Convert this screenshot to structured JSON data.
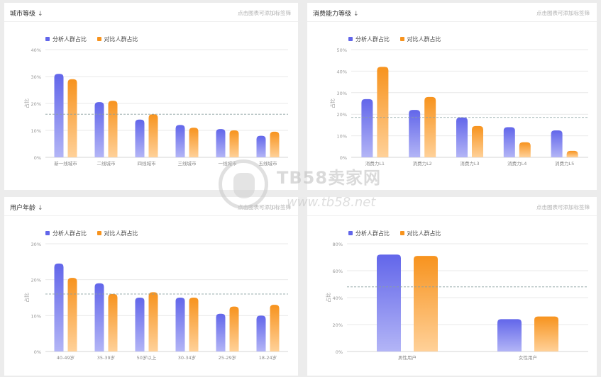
{
  "colors": {
    "analysis": "#6266ea",
    "compare": "#f7931e",
    "grid": "#e9e9e9",
    "avg_line": "#8aa0a0"
  },
  "legend": {
    "analysis_label": "分析人群占比",
    "compare_label": "对比人群占比"
  },
  "hint": "点击图表可添加标签筛",
  "watermark": {
    "line1": "TB58卖家网",
    "line2": "www.tb58.net"
  },
  "panels": [
    {
      "title": "城市等级",
      "sort_icon": "↓"
    },
    {
      "title": "消费能力等级",
      "sort_icon": "↓"
    },
    {
      "title": "用户年龄",
      "sort_icon": "↓"
    },
    {
      "title": "",
      "sort_icon": ""
    }
  ],
  "chart_data": [
    {
      "type": "bar",
      "ylabel": "占比",
      "yticks": [
        "0%",
        "10%",
        "20%",
        "30%",
        "40%"
      ],
      "ylim": [
        0,
        40
      ],
      "categories": [
        "新一线城市",
        "二线城市",
        "四线城市",
        "三线城市",
        "一线城市",
        "五线城市"
      ],
      "series": [
        {
          "name": "分析人群占比",
          "values": [
            31,
            20.5,
            14,
            12,
            10.5,
            8
          ]
        },
        {
          "name": "对比人群占比",
          "values": [
            29,
            21,
            16,
            11,
            10,
            9.5
          ]
        }
      ],
      "avg_line": 16,
      "grid": true,
      "legend_position": "top-left"
    },
    {
      "type": "bar",
      "ylabel": "占比",
      "yticks": [
        "0%",
        "10%",
        "20%",
        "30%",
        "40%",
        "50%"
      ],
      "ylim": [
        0,
        50
      ],
      "categories": [
        "消费力L1",
        "消费力L2",
        "消费力L3",
        "消费力L4",
        "消费力L5"
      ],
      "series": [
        {
          "name": "分析人群占比",
          "values": [
            27,
            22,
            18.5,
            14,
            12.5
          ]
        },
        {
          "name": "对比人群占比",
          "values": [
            42,
            28,
            14.5,
            7,
            3
          ]
        }
      ],
      "avg_line": 18.5,
      "grid": true,
      "legend_position": "top-left"
    },
    {
      "type": "bar",
      "ylabel": "占比",
      "yticks": [
        "0%",
        "10%",
        "20%",
        "30%"
      ],
      "ylim": [
        0,
        30
      ],
      "categories": [
        "40-49岁",
        "35-39岁",
        "50岁以上",
        "30-34岁",
        "25-29岁",
        "18-24岁"
      ],
      "series": [
        {
          "name": "分析人群占比",
          "values": [
            24.5,
            19,
            15,
            15,
            10.5,
            10
          ]
        },
        {
          "name": "对比人群占比",
          "values": [
            20.5,
            16,
            16.5,
            15,
            12.5,
            13
          ]
        }
      ],
      "avg_line": 16,
      "grid": true,
      "legend_position": "top-left"
    },
    {
      "type": "bar",
      "ylabel": "占比",
      "yticks": [
        "0%",
        "20%",
        "40%",
        "60%",
        "80%"
      ],
      "ylim": [
        0,
        80
      ],
      "categories": [
        "男性用户",
        "女性用户"
      ],
      "series": [
        {
          "name": "分析人群占比",
          "values": [
            72,
            24
          ]
        },
        {
          "name": "对比人群占比",
          "values": [
            71,
            26
          ]
        }
      ],
      "avg_line": 48,
      "grid": true,
      "legend_position": "top-left"
    }
  ]
}
